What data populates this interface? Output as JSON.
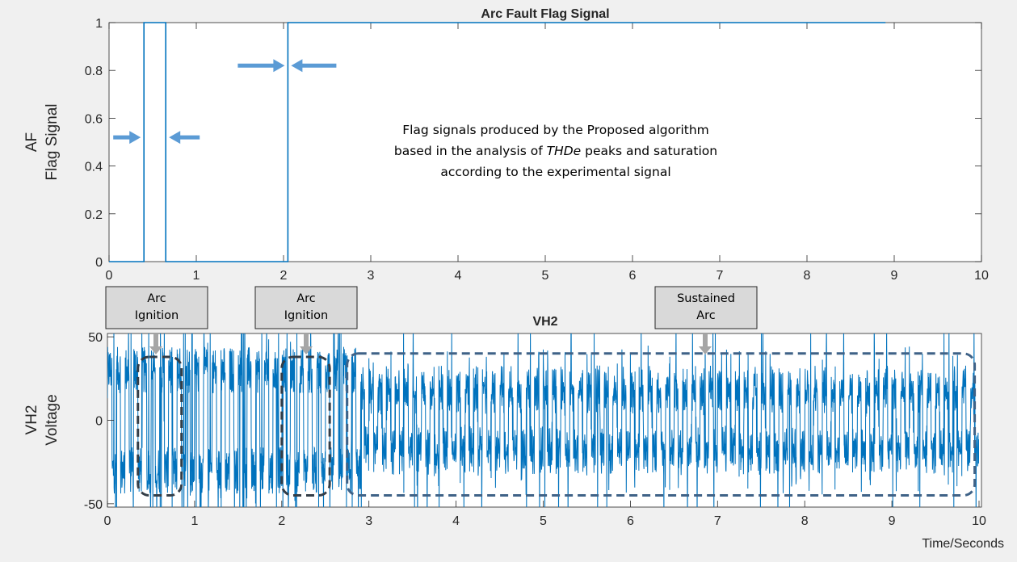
{
  "chart_data": [
    {
      "type": "line",
      "title": "Arc Fault Flag Signal",
      "ylabel": [
        "AF",
        "Flag Signal"
      ],
      "xlabel": "",
      "xlim": [
        0,
        10
      ],
      "ylim": [
        0,
        1
      ],
      "xticks": [
        "0",
        "1",
        "2",
        "3",
        "4",
        "5",
        "6",
        "7",
        "8",
        "9",
        "10"
      ],
      "yticks": [
        "0",
        "0.2",
        "0.4",
        "0.6",
        "0.8",
        "1"
      ],
      "grid": false,
      "color": "#0072BD",
      "series": [
        {
          "x": [
            0,
            0.4,
            0.4,
            0.65,
            0.65,
            2.05,
            2.05,
            8.9
          ],
          "values": [
            0,
            0,
            1,
            1,
            0,
            0,
            1,
            1
          ]
        }
      ],
      "annotation": {
        "lines": [
          [
            "Flag signals produced by the Proposed algorithm"
          ],
          [
            "based in the analysis of ",
            {
              "italic": "THDe"
            },
            " peaks and saturation"
          ],
          [
            "according to the experimental signal"
          ]
        ]
      }
    },
    {
      "type": "line",
      "title": "VH2",
      "ylabel": [
        "VH2",
        "Voltage"
      ],
      "xlabel": "Time/Seconds",
      "xlim": [
        0,
        10
      ],
      "ylim": [
        -52,
        52
      ],
      "xticks": [
        "0",
        "1",
        "2",
        "3",
        "4",
        "5",
        "6",
        "7",
        "8",
        "9",
        "10"
      ],
      "yticks": [
        "-50",
        "0",
        "50"
      ],
      "grid": false,
      "color": "#0072BD",
      "series": [
        {
          "description_free": true,
          "frequency_hz": 10,
          "segments": [
            {
              "x": [
                0,
                2.9
              ],
              "amplitude": 38,
              "behavior": "noisy with saturation spikes"
            },
            {
              "x": [
                2.9,
                10
              ],
              "amplitude": 30,
              "behavior": "sustained arc oscillation"
            }
          ]
        }
      ],
      "callouts": [
        {
          "lines": [
            "Arc",
            "Ignition"
          ]
        },
        {
          "lines": [
            "Arc",
            "Ignition"
          ]
        },
        {
          "lines": [
            "Sustained",
            "Arc"
          ]
        }
      ],
      "highlight_regions": [
        {
          "x": [
            0.35,
            0.85
          ],
          "y": [
            -45,
            38
          ]
        },
        {
          "x": [
            2.0,
            2.55
          ],
          "y": [
            -45,
            38
          ]
        },
        {
          "x": [
            2.75,
            9.95
          ],
          "y": [
            -45,
            40
          ]
        }
      ]
    }
  ]
}
